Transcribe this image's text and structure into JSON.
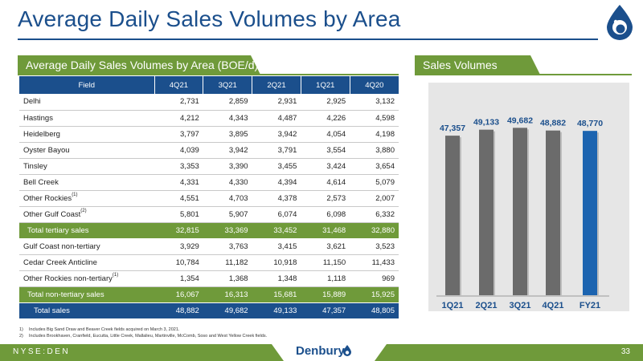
{
  "page": {
    "title": "Average Daily Sales Volumes by Area",
    "ticker": "NYSE:DEN",
    "page_number": "33",
    "brand": "Denbury"
  },
  "table": {
    "section_title": "Average Daily Sales Volumes by Area (BOE/d)",
    "headers": [
      "Field",
      "4Q21",
      "3Q21",
      "2Q21",
      "1Q21",
      "4Q20"
    ],
    "rows": [
      {
        "label": "Delhi",
        "sup": "",
        "values": [
          "2,731",
          "2,859",
          "2,931",
          "2,925",
          "3,132"
        ],
        "style": "normal"
      },
      {
        "label": "Hastings",
        "sup": "",
        "values": [
          "4,212",
          "4,343",
          "4,487",
          "4,226",
          "4,598"
        ],
        "style": "normal"
      },
      {
        "label": "Heidelberg",
        "sup": "",
        "values": [
          "3,797",
          "3,895",
          "3,942",
          "4,054",
          "4,198"
        ],
        "style": "normal"
      },
      {
        "label": "Oyster Bayou",
        "sup": "",
        "values": [
          "4,039",
          "3,942",
          "3,791",
          "3,554",
          "3,880"
        ],
        "style": "normal"
      },
      {
        "label": "Tinsley",
        "sup": "",
        "values": [
          "3,353",
          "3,390",
          "3,455",
          "3,424",
          "3,654"
        ],
        "style": "normal"
      },
      {
        "label": "Bell Creek",
        "sup": "",
        "values": [
          "4,331",
          "4,330",
          "4,394",
          "4,614",
          "5,079"
        ],
        "style": "normal"
      },
      {
        "label": "Other Rockies",
        "sup": "(1)",
        "values": [
          "4,551",
          "4,703",
          "4,378",
          "2,573",
          "2,007"
        ],
        "style": "normal"
      },
      {
        "label": "Other Gulf Coast",
        "sup": "(2)",
        "values": [
          "5,801",
          "5,907",
          "6,074",
          "6,098",
          "6,332"
        ],
        "style": "normal"
      },
      {
        "label": "Total tertiary sales",
        "sup": "",
        "values": [
          "32,815",
          "33,369",
          "33,452",
          "31,468",
          "32,880"
        ],
        "style": "subtotal"
      },
      {
        "label": "Gulf Coast non-tertiary",
        "sup": "",
        "values": [
          "3,929",
          "3,763",
          "3,415",
          "3,621",
          "3,523"
        ],
        "style": "normal"
      },
      {
        "label": "Cedar Creek Anticline",
        "sup": "",
        "values": [
          "10,784",
          "11,182",
          "10,918",
          "11,150",
          "11,433"
        ],
        "style": "normal"
      },
      {
        "label": "Other Rockies non-tertiary",
        "sup": "(1)",
        "values": [
          "1,354",
          "1,368",
          "1,348",
          "1,118",
          "969"
        ],
        "style": "normal"
      },
      {
        "label": "Total non-tertiary sales",
        "sup": "",
        "values": [
          "16,067",
          "16,313",
          "15,681",
          "15,889",
          "15,925"
        ],
        "style": "subtotal"
      },
      {
        "label": "Total sales",
        "sup": "",
        "values": [
          "48,882",
          "49,682",
          "49,133",
          "47,357",
          "48,805"
        ],
        "style": "total"
      }
    ]
  },
  "chart_data": {
    "type": "bar",
    "title": "Sales Volumes (BOE/d)",
    "categories": [
      "1Q21",
      "2Q21",
      "3Q21",
      "4Q21",
      "FY21"
    ],
    "values": [
      47357,
      49133,
      49682,
      48882,
      48770
    ],
    "value_labels": [
      "47,357",
      "49,133",
      "49,682",
      "48,882",
      "48,770"
    ],
    "colors": [
      "#6b6b6b",
      "#6b6b6b",
      "#6b6b6b",
      "#6b6b6b",
      "#1c64b0"
    ],
    "label_color": "#1b4f8c",
    "gridlines": false,
    "legend": "none"
  },
  "footnotes": [
    {
      "n": "1)",
      "text": "Includes Big Sand Draw and Beaver Creek fields acquired on March 3, 2021."
    },
    {
      "n": "2)",
      "text": "Includes Brookhaven, Cranfield, Eucutta, Little Creek, Mallalieu, Martinville, McComb, Soso and West Yellow Creek fields."
    }
  ],
  "colors": {
    "primary_blue": "#1b4f8c",
    "accent_green": "#6f9a3a",
    "bar_gray": "#6b6b6b",
    "bar_blue": "#1c64b0"
  }
}
